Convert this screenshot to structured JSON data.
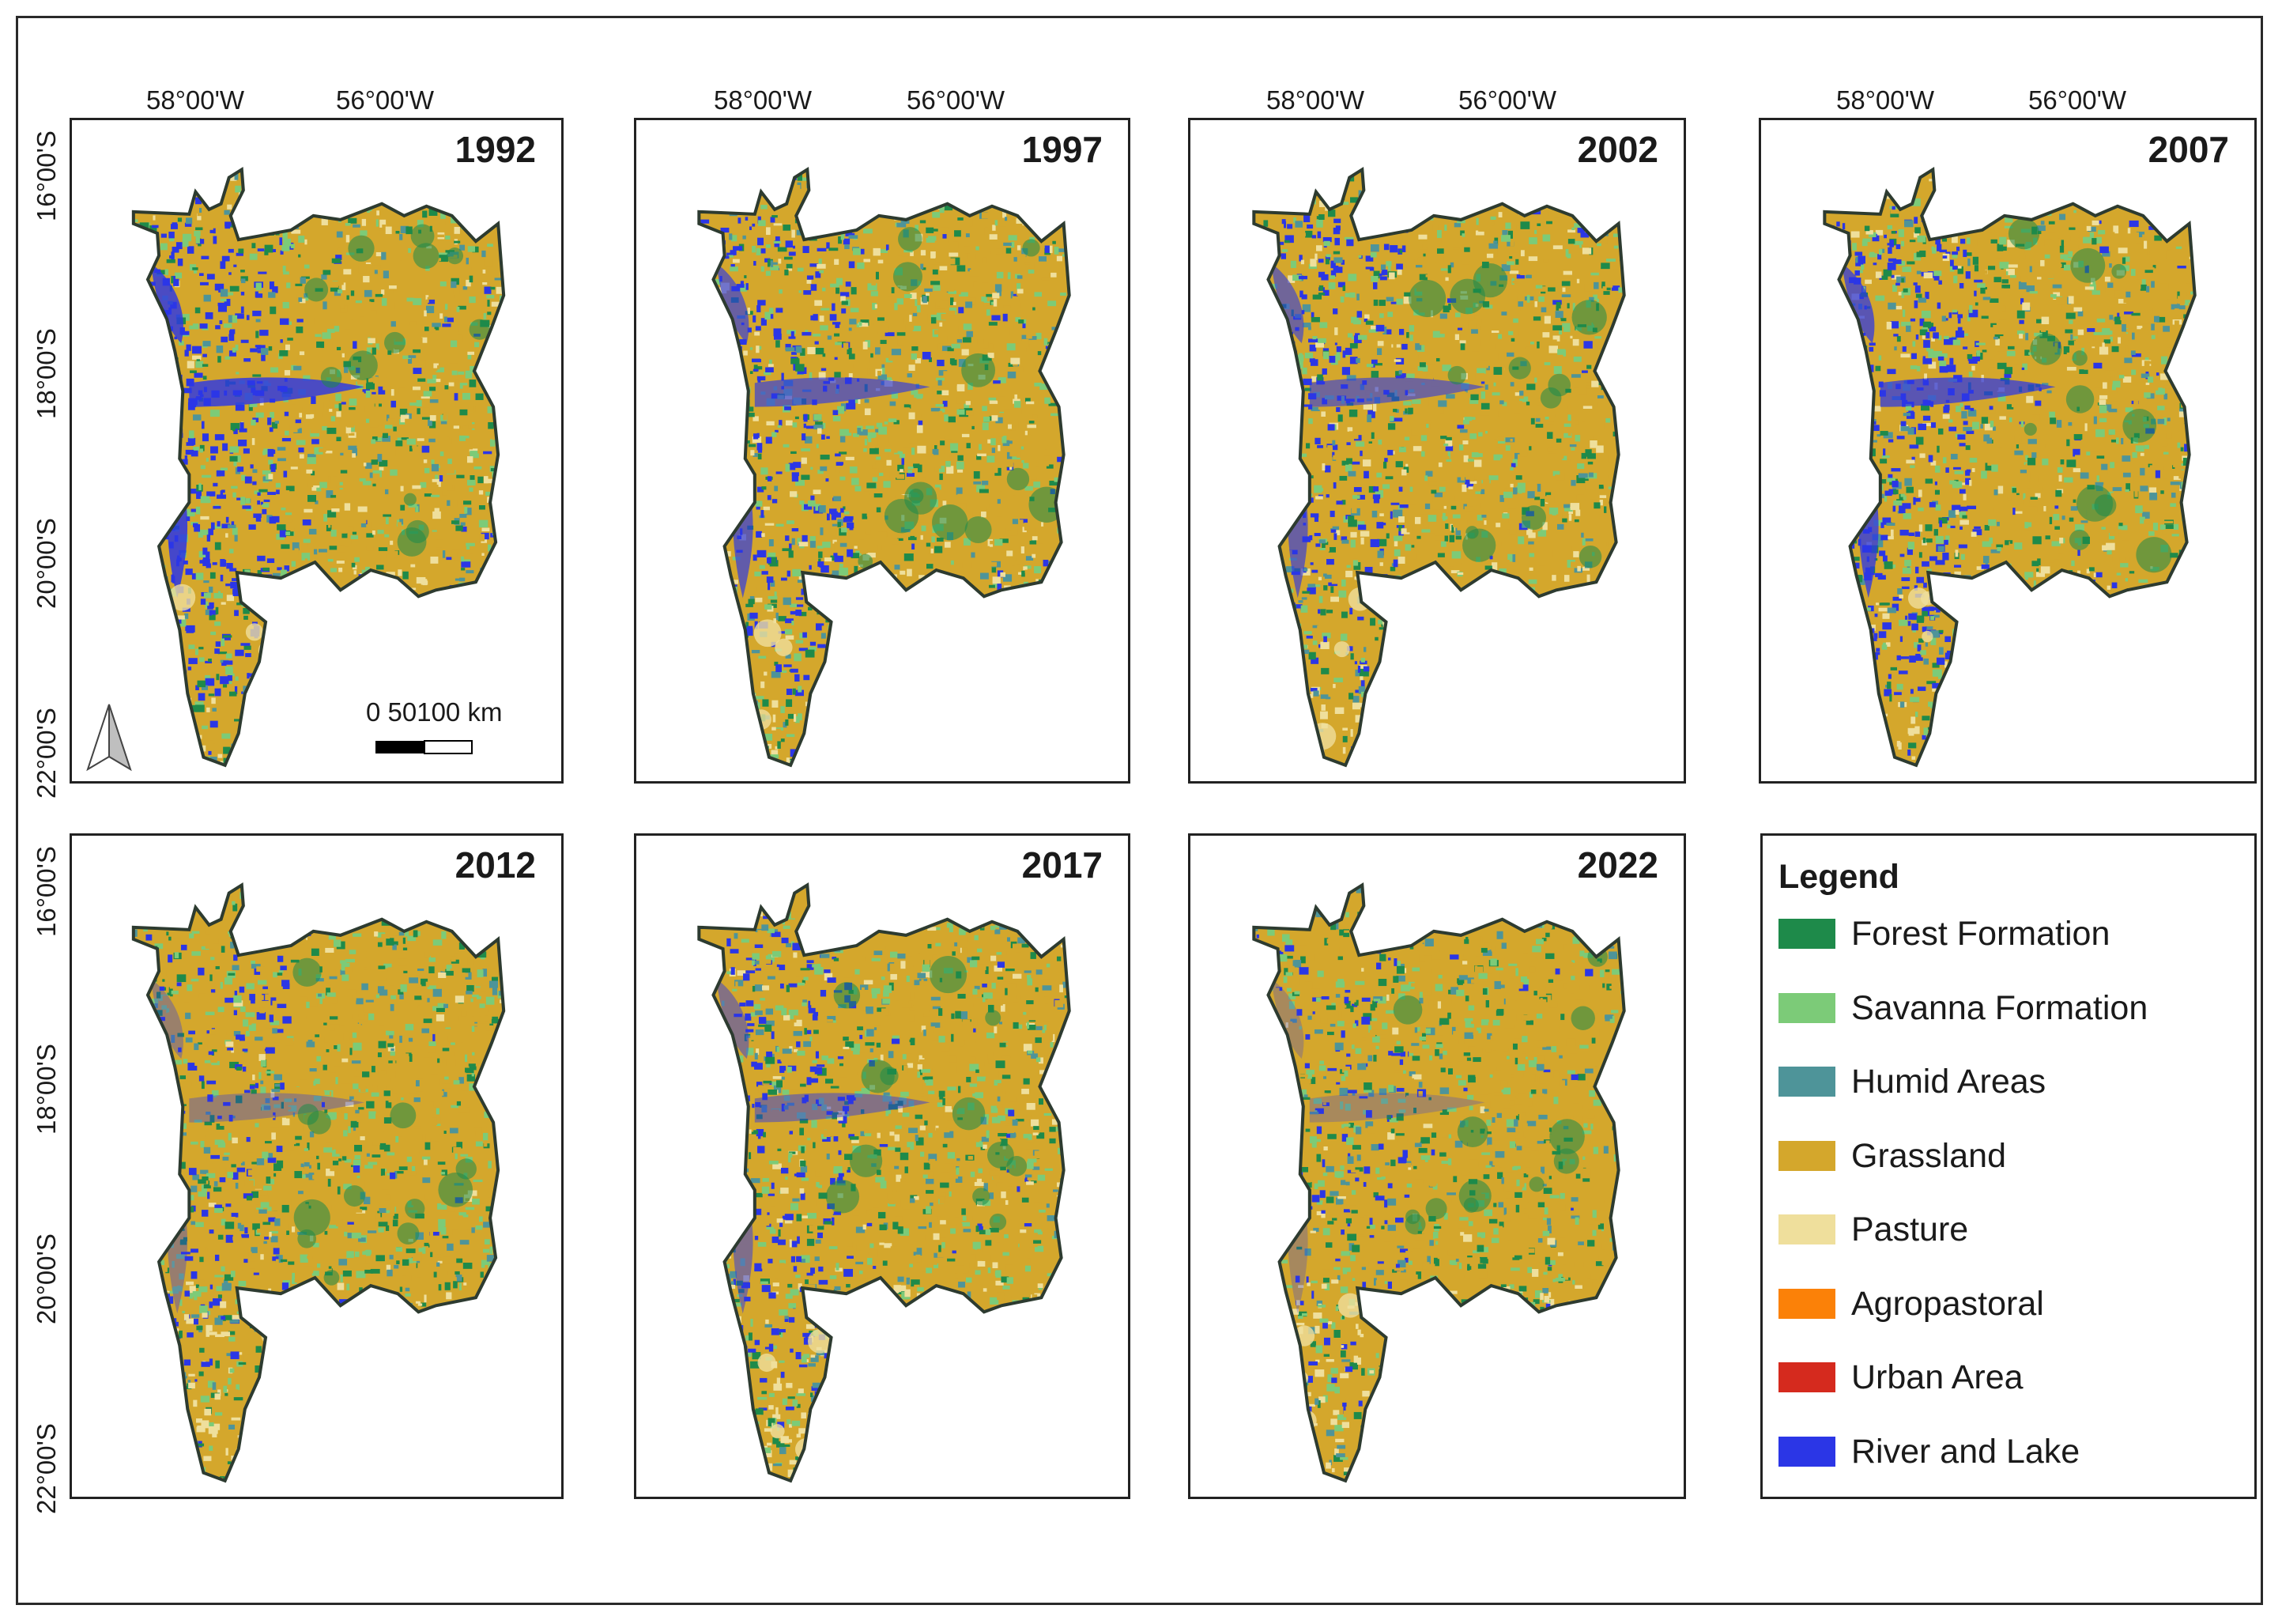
{
  "map": {
    "panels": [
      {
        "year": "1992",
        "water": 0.95,
        "grass": 0.45
      },
      {
        "year": "1997",
        "water": 0.75,
        "grass": 0.4
      },
      {
        "year": "2002",
        "water": 0.7,
        "grass": 0.55
      },
      {
        "year": "2007",
        "water": 0.85,
        "grass": 0.55
      },
      {
        "year": "2012",
        "water": 0.4,
        "grass": 0.8
      },
      {
        "year": "2017",
        "water": 0.55,
        "grass": 0.7
      },
      {
        "year": "2022",
        "water": 0.3,
        "grass": 0.9
      }
    ],
    "longitude_labels": [
      "58°00'W",
      "56°00'W"
    ],
    "latitude_labels": [
      "16°00'S",
      "18°00'S",
      "20°00'S",
      "22°00'S"
    ],
    "scale_bar": {
      "label": "0   50100 km"
    },
    "north_arrow_icon": "north-arrow-icon",
    "legend": {
      "title": "Legend",
      "items": [
        {
          "label": "Forest Formation",
          "color": "#1e8a4a"
        },
        {
          "label": "Savanna Formation",
          "color": "#7ccb78"
        },
        {
          "label": "Humid Areas",
          "color": "#4e9499"
        },
        {
          "label": "Grassland",
          "color": "#d4a72c"
        },
        {
          "label": "Pasture",
          "color": "#efdf9c"
        },
        {
          "label": "Agropastoral",
          "color": "#fb8108"
        },
        {
          "label": "Urban Area",
          "color": "#d52a1e"
        },
        {
          "label": "River and Lake",
          "color": "#2b36e6"
        }
      ]
    }
  }
}
